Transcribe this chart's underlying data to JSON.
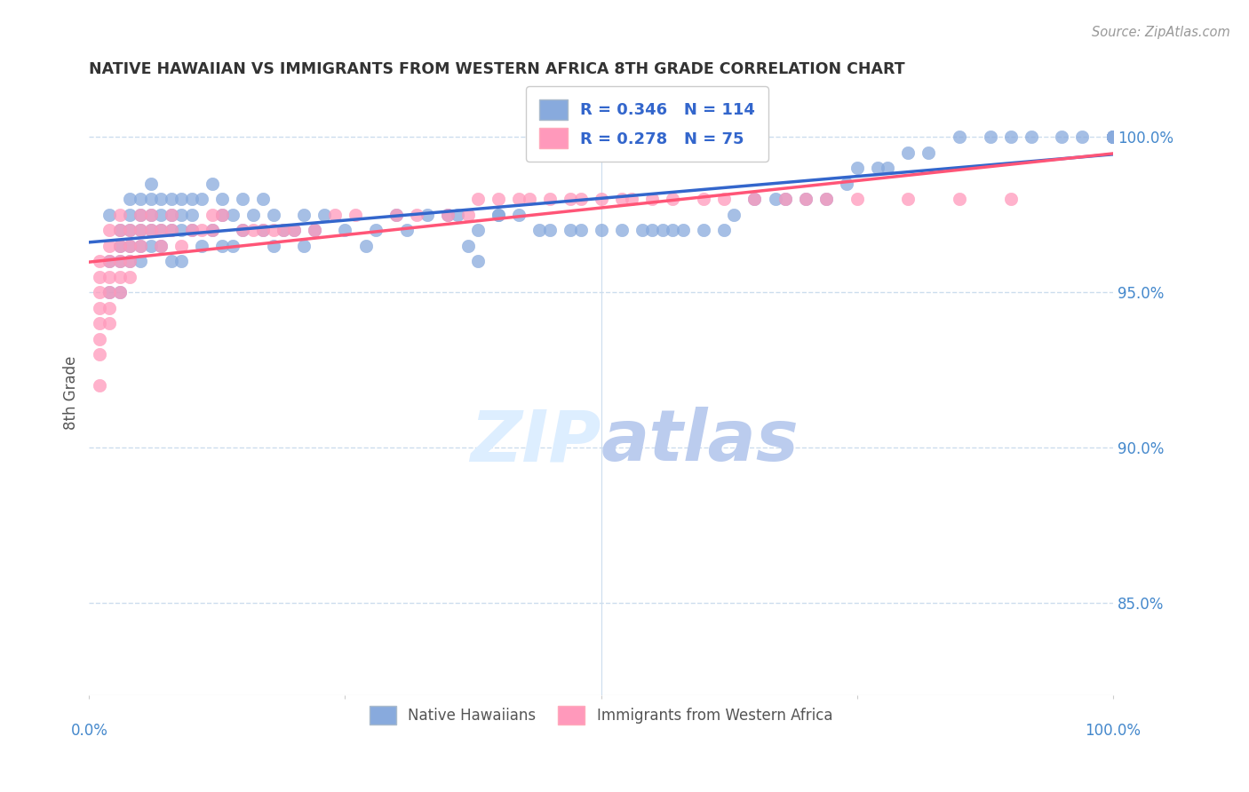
{
  "title": "NATIVE HAWAIIAN VS IMMIGRANTS FROM WESTERN AFRICA 8TH GRADE CORRELATION CHART",
  "source": "Source: ZipAtlas.com",
  "ylabel": "8th Grade",
  "xmin": 0.0,
  "xmax": 100.0,
  "ymin": 82.0,
  "ymax": 101.5,
  "yticks": [
    85.0,
    90.0,
    95.0,
    100.0
  ],
  "ytick_labels": [
    "85.0%",
    "90.0%",
    "95.0%",
    "100.0%"
  ],
  "blue_R": 0.346,
  "blue_N": 114,
  "pink_R": 0.278,
  "pink_N": 75,
  "blue_color": "#88AADD",
  "pink_color": "#FF99BB",
  "blue_line_color": "#3366CC",
  "pink_line_color": "#FF5577",
  "title_color": "#333333",
  "source_color": "#999999",
  "tick_color": "#4488CC",
  "grid_color": "#CCDDEE",
  "watermark_zip_color": "#DDEEFF",
  "watermark_atlas_color": "#BBCCEE",
  "legend_color": "#3366CC",
  "blue_x": [
    2,
    2,
    2,
    3,
    3,
    3,
    3,
    4,
    4,
    4,
    4,
    4,
    5,
    5,
    5,
    5,
    5,
    6,
    6,
    6,
    6,
    6,
    7,
    7,
    7,
    7,
    8,
    8,
    8,
    8,
    9,
    9,
    9,
    9,
    10,
    10,
    10,
    11,
    11,
    12,
    12,
    13,
    13,
    13,
    14,
    14,
    15,
    15,
    16,
    17,
    17,
    18,
    18,
    19,
    20,
    21,
    21,
    22,
    23,
    25,
    27,
    28,
    30,
    31,
    33,
    35,
    36,
    37,
    38,
    38,
    40,
    40,
    42,
    44,
    45,
    47,
    48,
    50,
    52,
    54,
    55,
    56,
    57,
    58,
    60,
    62,
    63,
    65,
    67,
    68,
    70,
    72,
    74,
    75,
    77,
    78,
    80,
    82,
    85,
    88,
    90,
    92,
    95,
    97,
    100,
    100,
    100,
    100,
    100,
    100,
    100,
    100,
    100,
    100
  ],
  "blue_y": [
    97.5,
    96.0,
    95.0,
    97.0,
    96.5,
    96.0,
    95.0,
    98.0,
    97.5,
    97.0,
    96.5,
    96.0,
    98.0,
    97.5,
    97.0,
    96.5,
    96.0,
    98.5,
    98.0,
    97.5,
    97.0,
    96.5,
    98.0,
    97.5,
    97.0,
    96.5,
    98.0,
    97.5,
    97.0,
    96.0,
    98.0,
    97.5,
    97.0,
    96.0,
    98.0,
    97.5,
    97.0,
    98.0,
    96.5,
    98.5,
    97.0,
    98.0,
    97.5,
    96.5,
    97.5,
    96.5,
    98.0,
    97.0,
    97.5,
    98.0,
    97.0,
    97.5,
    96.5,
    97.0,
    97.0,
    96.5,
    97.5,
    97.0,
    97.5,
    97.0,
    96.5,
    97.0,
    97.5,
    97.0,
    97.5,
    97.5,
    97.5,
    96.5,
    96.0,
    97.0,
    97.5,
    97.5,
    97.5,
    97.0,
    97.0,
    97.0,
    97.0,
    97.0,
    97.0,
    97.0,
    97.0,
    97.0,
    97.0,
    97.0,
    97.0,
    97.0,
    97.5,
    98.0,
    98.0,
    98.0,
    98.0,
    98.0,
    98.5,
    99.0,
    99.0,
    99.0,
    99.5,
    99.5,
    100.0,
    100.0,
    100.0,
    100.0,
    100.0,
    100.0,
    100.0,
    100.0,
    100.0,
    100.0,
    100.0,
    100.0,
    100.0,
    100.0,
    100.0,
    100.0
  ],
  "pink_x": [
    1,
    1,
    1,
    1,
    1,
    1,
    1,
    1,
    2,
    2,
    2,
    2,
    2,
    2,
    2,
    3,
    3,
    3,
    3,
    3,
    3,
    4,
    4,
    4,
    4,
    5,
    5,
    5,
    6,
    6,
    7,
    7,
    8,
    8,
    9,
    10,
    11,
    12,
    12,
    13,
    15,
    16,
    17,
    18,
    19,
    20,
    22,
    24,
    26,
    30,
    32,
    35,
    37,
    38,
    40,
    42,
    43,
    45,
    47,
    48,
    50,
    52,
    53,
    55,
    57,
    60,
    62,
    65,
    68,
    70,
    72,
    75,
    80,
    85,
    90
  ],
  "pink_y": [
    96.0,
    95.5,
    95.0,
    94.5,
    94.0,
    93.5,
    93.0,
    92.0,
    97.0,
    96.5,
    96.0,
    95.5,
    95.0,
    94.5,
    94.0,
    97.5,
    97.0,
    96.5,
    96.0,
    95.5,
    95.0,
    97.0,
    96.5,
    96.0,
    95.5,
    97.5,
    97.0,
    96.5,
    97.5,
    97.0,
    97.0,
    96.5,
    97.5,
    97.0,
    96.5,
    97.0,
    97.0,
    97.5,
    97.0,
    97.5,
    97.0,
    97.0,
    97.0,
    97.0,
    97.0,
    97.0,
    97.0,
    97.5,
    97.5,
    97.5,
    97.5,
    97.5,
    97.5,
    98.0,
    98.0,
    98.0,
    98.0,
    98.0,
    98.0,
    98.0,
    98.0,
    98.0,
    98.0,
    98.0,
    98.0,
    98.0,
    98.0,
    98.0,
    98.0,
    98.0,
    98.0,
    98.0,
    98.0,
    98.0,
    98.0
  ]
}
